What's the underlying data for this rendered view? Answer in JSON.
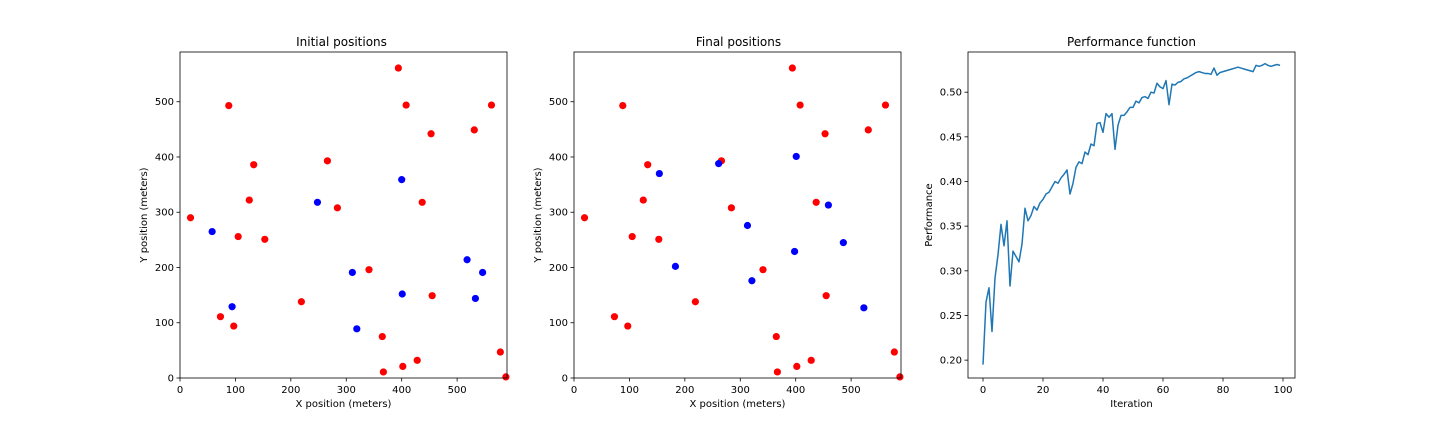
{
  "colors": {
    "red": "#ff0000",
    "blue": "#0000ff",
    "line": "#1f77b4"
  },
  "chart_data": [
    {
      "type": "scatter",
      "title": "Initial positions",
      "xlabel": "X position (meters)",
      "ylabel": "Y position (meters)",
      "xlim": [
        0,
        590
      ],
      "ylim": [
        0,
        590
      ],
      "xticks": [
        0,
        100,
        200,
        300,
        400,
        500
      ],
      "yticks": [
        0,
        100,
        200,
        300,
        400,
        500
      ],
      "grid": false,
      "series": [
        {
          "color": "red",
          "points": [
            [
              19,
              290
            ],
            [
              88,
              493
            ],
            [
              73,
              111
            ],
            [
              97,
              94
            ],
            [
              105,
              256
            ],
            [
              125,
              322
            ],
            [
              133,
              386
            ],
            [
              153,
              251
            ],
            [
              219,
              138
            ],
            [
              266,
              393
            ],
            [
              284,
              308
            ],
            [
              341,
              196
            ],
            [
              365,
              75
            ],
            [
              367,
              11
            ],
            [
              394,
              561
            ],
            [
              402,
              21
            ],
            [
              408,
              494
            ],
            [
              428,
              32
            ],
            [
              437,
              318
            ],
            [
              453,
              442
            ],
            [
              455,
              149
            ],
            [
              531,
              449
            ],
            [
              562,
              494
            ],
            [
              578,
              47
            ],
            [
              588,
              2
            ]
          ]
        },
        {
          "color": "blue",
          "points": [
            [
              58,
              265
            ],
            [
              94,
              129
            ],
            [
              248,
              318
            ],
            [
              311,
              191
            ],
            [
              319,
              89
            ],
            [
              400,
              359
            ],
            [
              401,
              152
            ],
            [
              518,
              214
            ],
            [
              533,
              144
            ],
            [
              546,
              191
            ]
          ]
        }
      ]
    },
    {
      "type": "scatter",
      "title": "Final positions",
      "xlabel": "X position (meters)",
      "ylabel": "Y position (meters)",
      "xlim": [
        0,
        590
      ],
      "ylim": [
        0,
        590
      ],
      "xticks": [
        0,
        100,
        200,
        300,
        400,
        500
      ],
      "yticks": [
        0,
        100,
        200,
        300,
        400,
        500
      ],
      "grid": false,
      "series": [
        {
          "color": "red",
          "points": [
            [
              19,
              290
            ],
            [
              88,
              493
            ],
            [
              73,
              111
            ],
            [
              97,
              94
            ],
            [
              105,
              256
            ],
            [
              125,
              322
            ],
            [
              133,
              386
            ],
            [
              153,
              251
            ],
            [
              219,
              138
            ],
            [
              266,
              393
            ],
            [
              284,
              308
            ],
            [
              341,
              196
            ],
            [
              365,
              75
            ],
            [
              367,
              11
            ],
            [
              394,
              561
            ],
            [
              402,
              21
            ],
            [
              408,
              494
            ],
            [
              428,
              32
            ],
            [
              437,
              318
            ],
            [
              453,
              442
            ],
            [
              455,
              149
            ],
            [
              531,
              449
            ],
            [
              562,
              494
            ],
            [
              578,
              47
            ],
            [
              588,
              2
            ]
          ]
        },
        {
          "color": "blue",
          "points": [
            [
              154,
              370
            ],
            [
              183,
              202
            ],
            [
              261,
              388
            ],
            [
              313,
              276
            ],
            [
              321,
              176
            ],
            [
              398,
              229
            ],
            [
              401,
              401
            ],
            [
              459,
              313
            ],
            [
              486,
              245
            ],
            [
              523,
              127
            ]
          ]
        }
      ]
    },
    {
      "type": "line",
      "title": "Performance function",
      "xlabel": "Iteration",
      "ylabel": "Performance",
      "xlim": [
        -5,
        104
      ],
      "ylim": [
        0.18,
        0.545
      ],
      "xticks": [
        0,
        20,
        40,
        60,
        80,
        100
      ],
      "yticks": [
        0.2,
        0.25,
        0.3,
        0.35,
        0.4,
        0.45,
        0.5
      ],
      "grid": false,
      "series": [
        {
          "color": "line",
          "x": [
            0,
            1,
            2,
            3,
            4,
            5,
            6,
            7,
            8,
            9,
            10,
            11,
            12,
            13,
            14,
            15,
            16,
            17,
            18,
            19,
            20,
            21,
            22,
            23,
            24,
            25,
            26,
            27,
            28,
            29,
            30,
            31,
            32,
            33,
            34,
            35,
            36,
            37,
            38,
            39,
            40,
            41,
            42,
            43,
            44,
            45,
            46,
            47,
            48,
            49,
            50,
            51,
            52,
            53,
            54,
            55,
            56,
            57,
            58,
            59,
            60,
            61,
            62,
            63,
            64,
            65,
            66,
            67,
            68,
            69,
            70,
            71,
            72,
            73,
            74,
            75,
            76,
            77,
            78,
            79,
            80,
            81,
            82,
            83,
            84,
            85,
            86,
            87,
            88,
            89,
            90,
            91,
            92,
            93,
            94,
            95,
            96,
            97,
            98,
            99
          ],
          "values": [
            0.195,
            0.265,
            0.281,
            0.232,
            0.292,
            0.318,
            0.352,
            0.328,
            0.356,
            0.283,
            0.322,
            0.316,
            0.31,
            0.33,
            0.37,
            0.356,
            0.362,
            0.372,
            0.368,
            0.376,
            0.38,
            0.386,
            0.388,
            0.394,
            0.4,
            0.398,
            0.404,
            0.408,
            0.413,
            0.386,
            0.398,
            0.416,
            0.422,
            0.42,
            0.433,
            0.43,
            0.442,
            0.44,
            0.465,
            0.466,
            0.455,
            0.476,
            0.472,
            0.476,
            0.436,
            0.463,
            0.474,
            0.474,
            0.478,
            0.483,
            0.483,
            0.49,
            0.488,
            0.494,
            0.495,
            0.493,
            0.5,
            0.499,
            0.51,
            0.506,
            0.504,
            0.513,
            0.486,
            0.509,
            0.508,
            0.511,
            0.512,
            0.515,
            0.516,
            0.518,
            0.52,
            0.522,
            0.523,
            0.522,
            0.521,
            0.521,
            0.52,
            0.527,
            0.519,
            0.522,
            0.523,
            0.524,
            0.525,
            0.526,
            0.527,
            0.528,
            0.527,
            0.526,
            0.525,
            0.524,
            0.523,
            0.53,
            0.529,
            0.53,
            0.532,
            0.53,
            0.529,
            0.53,
            0.531,
            0.53
          ]
        }
      ]
    }
  ]
}
